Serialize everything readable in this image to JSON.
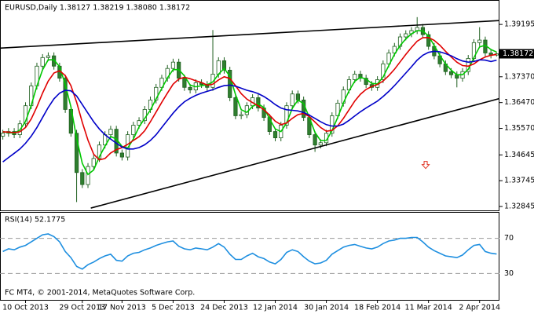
{
  "chart_data": {
    "type": "candlestick",
    "title": "EURUSD,Daily  1.38127 1.38219 1.38080 1.38172",
    "footer": "FC MT4, © 2001-2014, MetaQuotes Software Corp.",
    "categories": [
      null,
      null,
      null,
      null,
      "10 Oct 2013",
      null,
      null,
      null,
      null,
      null,
      null,
      null,
      null,
      null,
      "29 Oct 2013",
      null,
      null,
      null,
      null,
      null,
      null,
      "17 Nov 2013",
      null,
      null,
      null,
      null,
      null,
      null,
      null,
      null,
      "5 Dec 2013",
      null,
      null,
      null,
      null,
      null,
      null,
      null,
      null,
      "24 Dec 2013",
      null,
      null,
      null,
      null,
      null,
      null,
      null,
      null,
      "12 Jan 2014",
      null,
      null,
      null,
      null,
      null,
      null,
      null,
      null,
      "30 Jan 2014",
      null,
      null,
      null,
      null,
      null,
      null,
      null,
      null,
      "18 Feb 2014",
      null,
      null,
      null,
      null,
      null,
      null,
      null,
      null,
      "11 Mar 2014",
      null,
      null,
      null,
      null,
      null,
      null,
      null,
      null,
      "2 Apr 2014",
      null,
      null,
      null
    ],
    "candles": [
      [
        1.353,
        1.3552,
        1.3518,
        1.354
      ],
      [
        1.354,
        1.3558,
        1.3528,
        1.3546
      ],
      [
        1.3546,
        1.3558,
        1.3523,
        1.3535
      ],
      [
        1.3535,
        1.3585,
        1.3523,
        1.3573
      ],
      [
        1.3573,
        1.3648,
        1.3561,
        1.3636
      ],
      [
        1.3636,
        1.3717,
        1.3624,
        1.3705
      ],
      [
        1.3705,
        1.3786,
        1.3693,
        1.3774
      ],
      [
        1.3774,
        1.3816,
        1.3762,
        1.3804
      ],
      [
        1.3804,
        1.3822,
        1.3792,
        1.381
      ],
      [
        1.381,
        1.3822,
        1.3762,
        1.3774
      ],
      [
        1.3774,
        1.3786,
        1.372,
        1.3732
      ],
      [
        1.3732,
        1.3744,
        1.3611,
        1.3623
      ],
      [
        1.3623,
        1.3635,
        1.3528,
        1.354
      ],
      [
        1.354,
        1.3552,
        1.33,
        1.3403
      ],
      [
        1.3403,
        1.3415,
        1.3349,
        1.3361
      ],
      [
        1.3361,
        1.3436,
        1.3349,
        1.3424
      ],
      [
        1.3424,
        1.3464,
        1.3412,
        1.3452
      ],
      [
        1.3452,
        1.3511,
        1.344,
        1.3499
      ],
      [
        1.3499,
        1.3547,
        1.3487,
        1.3535
      ],
      [
        1.3535,
        1.3566,
        1.3523,
        1.3554
      ],
      [
        1.3554,
        1.3566,
        1.3459,
        1.3471
      ],
      [
        1.3471,
        1.3483,
        1.3445,
        1.3457
      ],
      [
        1.3457,
        1.3547,
        1.3445,
        1.3535
      ],
      [
        1.3535,
        1.358,
        1.3523,
        1.3568
      ],
      [
        1.3568,
        1.3596,
        1.3556,
        1.3584
      ],
      [
        1.3584,
        1.3635,
        1.3572,
        1.3623
      ],
      [
        1.3623,
        1.3668,
        1.3611,
        1.3656
      ],
      [
        1.3656,
        1.3712,
        1.3644,
        1.37
      ],
      [
        1.37,
        1.3744,
        1.3688,
        1.3732
      ],
      [
        1.3732,
        1.3778,
        1.372,
        1.3766
      ],
      [
        1.3766,
        1.38,
        1.3754,
        1.3788
      ],
      [
        1.3788,
        1.38,
        1.372,
        1.3732
      ],
      [
        1.3732,
        1.3744,
        1.3688,
        1.37
      ],
      [
        1.37,
        1.3712,
        1.3679,
        1.3691
      ],
      [
        1.3691,
        1.3728,
        1.3679,
        1.3716
      ],
      [
        1.3716,
        1.3728,
        1.3698,
        1.371
      ],
      [
        1.371,
        1.3722,
        1.3688,
        1.37
      ],
      [
        1.37,
        1.39,
        1.3688,
        1.3746
      ],
      [
        1.3746,
        1.3805,
        1.3734,
        1.3793
      ],
      [
        1.3793,
        1.3805,
        1.3748,
        1.376
      ],
      [
        1.376,
        1.3772,
        1.3652,
        1.3664
      ],
      [
        1.3664,
        1.3676,
        1.3589,
        1.3601
      ],
      [
        1.3601,
        1.3617,
        1.3589,
        1.3605
      ],
      [
        1.3605,
        1.3648,
        1.3593,
        1.3636
      ],
      [
        1.3636,
        1.3676,
        1.3624,
        1.3664
      ],
      [
        1.3664,
        1.3676,
        1.3616,
        1.3628
      ],
      [
        1.3628,
        1.364,
        1.3583,
        1.3595
      ],
      [
        1.3595,
        1.3607,
        1.3534,
        1.3546
      ],
      [
        1.3546,
        1.3558,
        1.3512,
        1.3524
      ],
      [
        1.3524,
        1.358,
        1.3512,
        1.3568
      ],
      [
        1.3568,
        1.3648,
        1.3556,
        1.3636
      ],
      [
        1.3636,
        1.3689,
        1.3624,
        1.3677
      ],
      [
        1.3677,
        1.3689,
        1.3644,
        1.3656
      ],
      [
        1.3656,
        1.3668,
        1.3583,
        1.3595
      ],
      [
        1.3595,
        1.3607,
        1.3523,
        1.3535
      ],
      [
        1.3535,
        1.3547,
        1.3475,
        1.3499
      ],
      [
        1.3499,
        1.3519,
        1.3487,
        1.3507
      ],
      [
        1.3507,
        1.3552,
        1.3495,
        1.354
      ],
      [
        1.354,
        1.3613,
        1.3528,
        1.3601
      ],
      [
        1.3601,
        1.3657,
        1.3589,
        1.3645
      ],
      [
        1.3645,
        1.3703,
        1.3633,
        1.3691
      ],
      [
        1.3691,
        1.3739,
        1.3679,
        1.3727
      ],
      [
        1.3727,
        1.3758,
        1.3715,
        1.3746
      ],
      [
        1.3746,
        1.3758,
        1.372,
        1.3732
      ],
      [
        1.3732,
        1.3744,
        1.3698,
        1.371
      ],
      [
        1.371,
        1.3722,
        1.3688,
        1.37
      ],
      [
        1.37,
        1.3739,
        1.3688,
        1.3727
      ],
      [
        1.3727,
        1.3794,
        1.3715,
        1.3782
      ],
      [
        1.3782,
        1.3832,
        1.377,
        1.382
      ],
      [
        1.382,
        1.3855,
        1.3808,
        1.3843
      ],
      [
        1.3843,
        1.3888,
        1.3831,
        1.3876
      ],
      [
        1.3876,
        1.3899,
        1.3864,
        1.3887
      ],
      [
        1.3887,
        1.391,
        1.3875,
        1.3898
      ],
      [
        1.3898,
        1.3945,
        1.3886,
        1.3909
      ],
      [
        1.3909,
        1.3921,
        1.3872,
        1.3884
      ],
      [
        1.3884,
        1.3896,
        1.3831,
        1.3843
      ],
      [
        1.3843,
        1.3855,
        1.3798,
        1.381
      ],
      [
        1.381,
        1.3822,
        1.377,
        1.3782
      ],
      [
        1.3782,
        1.3794,
        1.3743,
        1.3755
      ],
      [
        1.3755,
        1.3767,
        1.3732,
        1.3744
      ],
      [
        1.3744,
        1.3756,
        1.37,
        1.3732
      ],
      [
        1.3732,
        1.3767,
        1.372,
        1.3755
      ],
      [
        1.3755,
        1.3813,
        1.3743,
        1.3801
      ],
      [
        1.3801,
        1.3868,
        1.3789,
        1.3856
      ],
      [
        1.3856,
        1.391,
        1.3844,
        1.3865
      ],
      [
        1.3865,
        1.3877,
        1.3808,
        1.382
      ],
      [
        1.382,
        1.3832,
        1.3801,
        1.38127
      ],
      [
        1.38127,
        1.38219,
        1.3808,
        1.38172
      ]
    ],
    "candle_colors": {
      "wick": "#1f5f1f",
      "up": "#ffffff",
      "down": "#2f7f2f"
    },
    "moving_averages": [
      {
        "color": "#00c800",
        "values": [
          1.3545,
          1.3543,
          1.354,
          1.3551,
          1.3581,
          1.3638,
          1.3705,
          1.3761,
          1.3796,
          1.3796,
          1.3772,
          1.371,
          1.3632,
          1.3522,
          1.3435,
          1.3396,
          1.3412,
          1.3458,
          1.3495,
          1.3529,
          1.352,
          1.3494,
          1.3488,
          1.352,
          1.3562,
          1.3592,
          1.3621,
          1.366,
          1.3696,
          1.3733,
          1.3762,
          1.3762,
          1.374,
          1.3708,
          1.3702,
          1.3706,
          1.3709,
          1.3719,
          1.3746,
          1.3766,
          1.3739,
          1.3675,
          1.3622,
          1.3613,
          1.3634,
          1.3643,
          1.3629,
          1.359,
          1.3555,
          1.3546,
          1.3576,
          1.3627,
          1.3656,
          1.3643,
          1.3595,
          1.3543,
          1.3514,
          1.3515,
          1.3549,
          1.3595,
          1.3646,
          1.3688,
          1.3721,
          1.3735,
          1.3729,
          1.3714,
          1.3712,
          1.3736,
          1.3776,
          1.3815,
          1.3846,
          1.3869,
          1.3887,
          1.3898,
          1.3897,
          1.3879,
          1.3846,
          1.3812,
          1.3782,
          1.376,
          1.3744,
          1.3744,
          1.3763,
          1.3804,
          1.3841,
          1.3847,
          1.3832,
          1.3823
        ]
      },
      {
        "color": "#e00000",
        "values": [
          1.3545,
          1.3544,
          1.3542,
          1.3545,
          1.356,
          1.359,
          1.3632,
          1.368,
          1.3722,
          1.375,
          1.3758,
          1.3741,
          1.3706,
          1.3648,
          1.3578,
          1.3516,
          1.3467,
          1.3447,
          1.3452,
          1.3471,
          1.3483,
          1.349,
          1.3501,
          1.3515,
          1.3528,
          1.3549,
          1.358,
          1.3614,
          1.3648,
          1.368,
          1.3711,
          1.3729,
          1.3735,
          1.373,
          1.3723,
          1.3717,
          1.3708,
          1.3711,
          1.3726,
          1.3737,
          1.3731,
          1.3706,
          1.3678,
          1.3659,
          1.3647,
          1.3636,
          1.3622,
          1.3603,
          1.3582,
          1.357,
          1.3576,
          1.3592,
          1.3605,
          1.3609,
          1.3598,
          1.3579,
          1.356,
          1.3547,
          1.355,
          1.3566,
          1.3592,
          1.3622,
          1.3652,
          1.3676,
          1.3693,
          1.3703,
          1.371,
          1.3722,
          1.3741,
          1.3763,
          1.3789,
          1.3815,
          1.3839,
          1.3861,
          1.3873,
          1.3874,
          1.3864,
          1.3847,
          1.3826,
          1.3806,
          1.3788,
          1.3776,
          1.3774,
          1.3782,
          1.3796,
          1.3806,
          1.3812,
          1.3815
        ]
      },
      {
        "color": "#0000c8",
        "values": [
          1.344,
          1.3455,
          1.347,
          1.3485,
          1.3505,
          1.353,
          1.356,
          1.3595,
          1.363,
          1.366,
          1.368,
          1.369,
          1.3688,
          1.367,
          1.364,
          1.361,
          1.358,
          1.3555,
          1.3535,
          1.352,
          1.3505,
          1.3492,
          1.3485,
          1.3485,
          1.349,
          1.35,
          1.3515,
          1.3535,
          1.356,
          1.3585,
          1.361,
          1.3632,
          1.365,
          1.3662,
          1.3672,
          1.368,
          1.3686,
          1.3692,
          1.37,
          1.3706,
          1.3708,
          1.3704,
          1.3697,
          1.369,
          1.3685,
          1.3678,
          1.3668,
          1.3655,
          1.364,
          1.3628,
          1.3622,
          1.362,
          1.3618,
          1.3612,
          1.3603,
          1.3592,
          1.358,
          1.357,
          1.3565,
          1.3565,
          1.3572,
          1.3585,
          1.36,
          1.3615,
          1.3628,
          1.364,
          1.3652,
          1.3668,
          1.3686,
          1.3706,
          1.3728,
          1.375,
          1.3772,
          1.3795,
          1.3812,
          1.3822,
          1.3826,
          1.3824,
          1.3818,
          1.381,
          1.38,
          1.3792,
          1.3788,
          1.379,
          1.3796,
          1.3795,
          1.379,
          1.3795
        ]
      }
    ],
    "ylim": [
      1.3271,
      1.4002
    ],
    "yticks": [
      1.39195,
      {
        "value": 1.3737,
        "label": "1.37370"
      },
      {
        "value": 1.3647,
        "label": "1.36470"
      },
      {
        "value": 1.3557,
        "label": "1.35570"
      },
      1.34645,
      1.33745,
      1.32845
    ],
    "current_price": 1.38172,
    "trendlines": [
      {
        "x": [
          0,
          88
        ],
        "y": [
          1.3837,
          1.3933
        ]
      },
      {
        "x": [
          16,
          88
        ],
        "y": [
          1.3279,
          1.3661
        ]
      }
    ],
    "trendline_color": "#000000",
    "arrows": [
      {
        "x": 75,
        "y": 1.3428,
        "color": "#e03020"
      }
    ],
    "rsi": {
      "title": "RSI(14) 52.1775",
      "color": "#1e8fe0",
      "ylim": [
        0,
        100
      ],
      "yticks": [
        30,
        70
      ],
      "values": [
        55,
        58,
        57,
        60,
        62,
        66,
        70,
        74,
        75,
        72,
        66,
        55,
        48,
        38,
        35,
        40,
        43,
        47,
        50,
        52,
        45,
        44,
        50,
        53,
        54,
        57,
        59,
        62,
        64,
        66,
        67,
        61,
        58,
        57,
        59,
        58,
        57,
        60,
        64,
        60,
        52,
        46,
        46,
        50,
        53,
        49,
        47,
        43,
        41,
        46,
        54,
        57,
        55,
        49,
        44,
        41,
        42,
        45,
        52,
        56,
        60,
        62,
        63,
        61,
        59,
        58,
        60,
        64,
        67,
        68,
        70,
        70,
        71,
        71,
        66,
        60,
        56,
        53,
        50,
        49,
        48,
        51,
        57,
        62,
        63,
        55,
        53,
        52.1775
      ]
    }
  }
}
